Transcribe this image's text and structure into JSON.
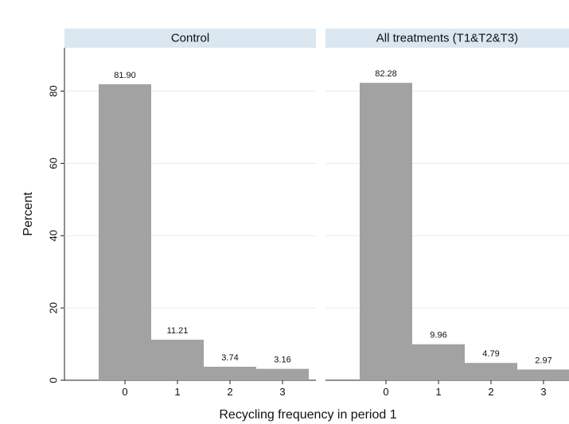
{
  "chart_data": {
    "type": "bar",
    "xlabel": "Recycling frequency in period 1",
    "ylabel": "Percent",
    "ylim": [
      0,
      92
    ],
    "yticks": [
      0,
      20,
      40,
      60,
      80
    ],
    "categories": [
      "0",
      "1",
      "2",
      "3"
    ],
    "grid": true,
    "panels": [
      {
        "title": "Control",
        "values": [
          81.9,
          11.21,
          3.74,
          3.16
        ],
        "value_labels": [
          "81.90",
          "11.21",
          "3.74",
          "3.16"
        ]
      },
      {
        "title": "All treatments (T1&T2&T3)",
        "values": [
          82.28,
          9.96,
          4.79,
          2.97
        ],
        "value_labels": [
          "82.28",
          "9.96",
          "4.79",
          "2.97"
        ]
      }
    ],
    "colors": {
      "bar": "#a2a2a2",
      "strip": "#dae7f0"
    }
  }
}
